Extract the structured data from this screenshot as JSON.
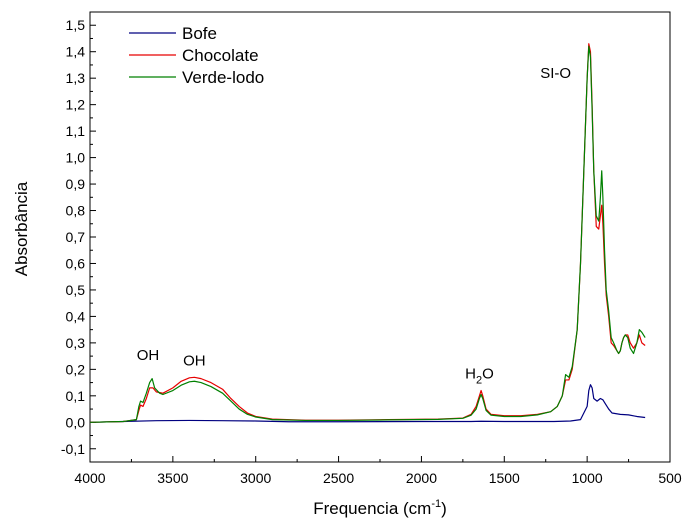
{
  "chart_data": {
    "type": "line",
    "xlabel": "Frequencia (cm",
    "xlabel_sup": "-1",
    "xlabel_end": ")",
    "ylabel": "Absorbância",
    "xlim": [
      4000,
      500
    ],
    "ylim": [
      -0.15,
      1.55
    ],
    "x_ticks": [
      {
        "value": 4000,
        "label": "4000"
      },
      {
        "value": 3500,
        "label": "3500"
      },
      {
        "value": 3000,
        "label": "3000"
      },
      {
        "value": 2500,
        "label": "2500"
      },
      {
        "value": 2000,
        "label": "2000"
      },
      {
        "value": 1500,
        "label": "1500"
      },
      {
        "value": 1000,
        "label": "1000"
      },
      {
        "value": 500,
        "label": "500"
      }
    ],
    "y_ticks": [
      {
        "value": -0.1,
        "label": "-0,1"
      },
      {
        "value": 0.0,
        "label": "0,0"
      },
      {
        "value": 0.1,
        "label": "0,1"
      },
      {
        "value": 0.2,
        "label": "0,2"
      },
      {
        "value": 0.3,
        "label": "0,3"
      },
      {
        "value": 0.4,
        "label": "0,4"
      },
      {
        "value": 0.5,
        "label": "0,5"
      },
      {
        "value": 0.6,
        "label": "0,6"
      },
      {
        "value": 0.7,
        "label": "0,7"
      },
      {
        "value": 0.8,
        "label": "0,8"
      },
      {
        "value": 0.9,
        "label": "0,9"
      },
      {
        "value": 1.0,
        "label": "1,0"
      },
      {
        "value": 1.1,
        "label": "1,1"
      },
      {
        "value": 1.2,
        "label": "1,2"
      },
      {
        "value": 1.3,
        "label": "1,3"
      },
      {
        "value": 1.4,
        "label": "1,4"
      },
      {
        "value": 1.5,
        "label": "1,5"
      }
    ],
    "grid": false,
    "legend_position": "top-left",
    "annotations": [
      {
        "text": "OH",
        "x": 3650,
        "y": 0.235
      },
      {
        "text": "OH",
        "x": 3370,
        "y": 0.215
      },
      {
        "text": "H",
        "sub": "2",
        "text_end": "O",
        "x": 1650,
        "y": 0.165
      },
      {
        "text": "SI-O",
        "x": 1190,
        "y": 1.3
      }
    ],
    "series": [
      {
        "name": "Bofe",
        "color": "#000080",
        "points": [
          [
            4000,
            0.0
          ],
          [
            3800,
            0.003
          ],
          [
            3600,
            0.006
          ],
          [
            3400,
            0.007
          ],
          [
            3200,
            0.006
          ],
          [
            3000,
            0.005
          ],
          [
            2800,
            0.002
          ],
          [
            2500,
            0.002
          ],
          [
            2000,
            0.003
          ],
          [
            1700,
            0.003
          ],
          [
            1640,
            0.004
          ],
          [
            1500,
            0.003
          ],
          [
            1200,
            0.003
          ],
          [
            1100,
            0.005
          ],
          [
            1040,
            0.01
          ],
          [
            1000,
            0.06
          ],
          [
            990,
            0.12
          ],
          [
            980,
            0.142
          ],
          [
            970,
            0.13
          ],
          [
            960,
            0.09
          ],
          [
            940,
            0.08
          ],
          [
            920,
            0.09
          ],
          [
            905,
            0.085
          ],
          [
            890,
            0.07
          ],
          [
            870,
            0.05
          ],
          [
            850,
            0.035
          ],
          [
            800,
            0.03
          ],
          [
            750,
            0.028
          ],
          [
            700,
            0.022
          ],
          [
            650,
            0.018
          ]
        ]
      },
      {
        "name": "Chocolate",
        "color": "#e60000",
        "points": [
          [
            4000,
            0.0
          ],
          [
            3800,
            0.003
          ],
          [
            3720,
            0.01
          ],
          [
            3705,
            0.045
          ],
          [
            3695,
            0.065
          ],
          [
            3680,
            0.06
          ],
          [
            3660,
            0.09
          ],
          [
            3640,
            0.13
          ],
          [
            3620,
            0.13
          ],
          [
            3600,
            0.115
          ],
          [
            3560,
            0.11
          ],
          [
            3500,
            0.13
          ],
          [
            3450,
            0.155
          ],
          [
            3400,
            0.168
          ],
          [
            3370,
            0.17
          ],
          [
            3330,
            0.165
          ],
          [
            3270,
            0.15
          ],
          [
            3200,
            0.125
          ],
          [
            3150,
            0.09
          ],
          [
            3100,
            0.06
          ],
          [
            3050,
            0.035
          ],
          [
            3000,
            0.022
          ],
          [
            2900,
            0.012
          ],
          [
            2700,
            0.008
          ],
          [
            2500,
            0.008
          ],
          [
            2200,
            0.01
          ],
          [
            1900,
            0.012
          ],
          [
            1750,
            0.016
          ],
          [
            1700,
            0.03
          ],
          [
            1670,
            0.06
          ],
          [
            1650,
            0.1
          ],
          [
            1640,
            0.12
          ],
          [
            1630,
            0.1
          ],
          [
            1610,
            0.05
          ],
          [
            1580,
            0.03
          ],
          [
            1500,
            0.025
          ],
          [
            1400,
            0.025
          ],
          [
            1300,
            0.03
          ],
          [
            1220,
            0.04
          ],
          [
            1180,
            0.06
          ],
          [
            1150,
            0.1
          ],
          [
            1130,
            0.16
          ],
          [
            1110,
            0.16
          ],
          [
            1090,
            0.2
          ],
          [
            1060,
            0.35
          ],
          [
            1040,
            0.6
          ],
          [
            1020,
            0.95
          ],
          [
            1000,
            1.3
          ],
          [
            990,
            1.43
          ],
          [
            980,
            1.4
          ],
          [
            970,
            1.2
          ],
          [
            960,
            0.95
          ],
          [
            945,
            0.74
          ],
          [
            930,
            0.73
          ],
          [
            920,
            0.78
          ],
          [
            912,
            0.82
          ],
          [
            905,
            0.75
          ],
          [
            895,
            0.6
          ],
          [
            885,
            0.48
          ],
          [
            870,
            0.4
          ],
          [
            855,
            0.3
          ],
          [
            840,
            0.29
          ],
          [
            820,
            0.27
          ],
          [
            810,
            0.26
          ],
          [
            800,
            0.27
          ],
          [
            790,
            0.3
          ],
          [
            780,
            0.32
          ],
          [
            770,
            0.33
          ],
          [
            755,
            0.33
          ],
          [
            740,
            0.3
          ],
          [
            720,
            0.28
          ],
          [
            700,
            0.3
          ],
          [
            685,
            0.33
          ],
          [
            670,
            0.3
          ],
          [
            650,
            0.29
          ]
        ]
      },
      {
        "name": "Verde-lodo",
        "color": "#008000",
        "points": [
          [
            4000,
            0.0
          ],
          [
            3800,
            0.003
          ],
          [
            3720,
            0.01
          ],
          [
            3705,
            0.06
          ],
          [
            3695,
            0.08
          ],
          [
            3680,
            0.075
          ],
          [
            3660,
            0.11
          ],
          [
            3640,
            0.15
          ],
          [
            3625,
            0.165
          ],
          [
            3610,
            0.13
          ],
          [
            3580,
            0.11
          ],
          [
            3560,
            0.105
          ],
          [
            3500,
            0.12
          ],
          [
            3450,
            0.14
          ],
          [
            3400,
            0.153
          ],
          [
            3370,
            0.155
          ],
          [
            3330,
            0.15
          ],
          [
            3270,
            0.135
          ],
          [
            3200,
            0.11
          ],
          [
            3150,
            0.08
          ],
          [
            3100,
            0.05
          ],
          [
            3050,
            0.03
          ],
          [
            3000,
            0.02
          ],
          [
            2900,
            0.01
          ],
          [
            2700,
            0.007
          ],
          [
            2500,
            0.007
          ],
          [
            2200,
            0.009
          ],
          [
            1900,
            0.011
          ],
          [
            1750,
            0.015
          ],
          [
            1700,
            0.027
          ],
          [
            1670,
            0.05
          ],
          [
            1650,
            0.09
          ],
          [
            1640,
            0.105
          ],
          [
            1630,
            0.09
          ],
          [
            1610,
            0.045
          ],
          [
            1580,
            0.027
          ],
          [
            1500,
            0.022
          ],
          [
            1400,
            0.022
          ],
          [
            1300,
            0.028
          ],
          [
            1220,
            0.04
          ],
          [
            1180,
            0.06
          ],
          [
            1150,
            0.1
          ],
          [
            1130,
            0.18
          ],
          [
            1110,
            0.17
          ],
          [
            1090,
            0.21
          ],
          [
            1060,
            0.35
          ],
          [
            1040,
            0.6
          ],
          [
            1020,
            0.95
          ],
          [
            1000,
            1.3
          ],
          [
            990,
            1.42
          ],
          [
            980,
            1.38
          ],
          [
            970,
            1.18
          ],
          [
            960,
            0.95
          ],
          [
            945,
            0.78
          ],
          [
            930,
            0.76
          ],
          [
            920,
            0.85
          ],
          [
            912,
            0.95
          ],
          [
            905,
            0.85
          ],
          [
            895,
            0.65
          ],
          [
            885,
            0.5
          ],
          [
            870,
            0.42
          ],
          [
            855,
            0.32
          ],
          [
            840,
            0.3
          ],
          [
            820,
            0.27
          ],
          [
            810,
            0.26
          ],
          [
            800,
            0.27
          ],
          [
            790,
            0.3
          ],
          [
            780,
            0.32
          ],
          [
            770,
            0.33
          ],
          [
            755,
            0.32
          ],
          [
            740,
            0.28
          ],
          [
            720,
            0.26
          ],
          [
            700,
            0.3
          ],
          [
            685,
            0.35
          ],
          [
            670,
            0.34
          ],
          [
            650,
            0.32
          ]
        ]
      }
    ]
  }
}
